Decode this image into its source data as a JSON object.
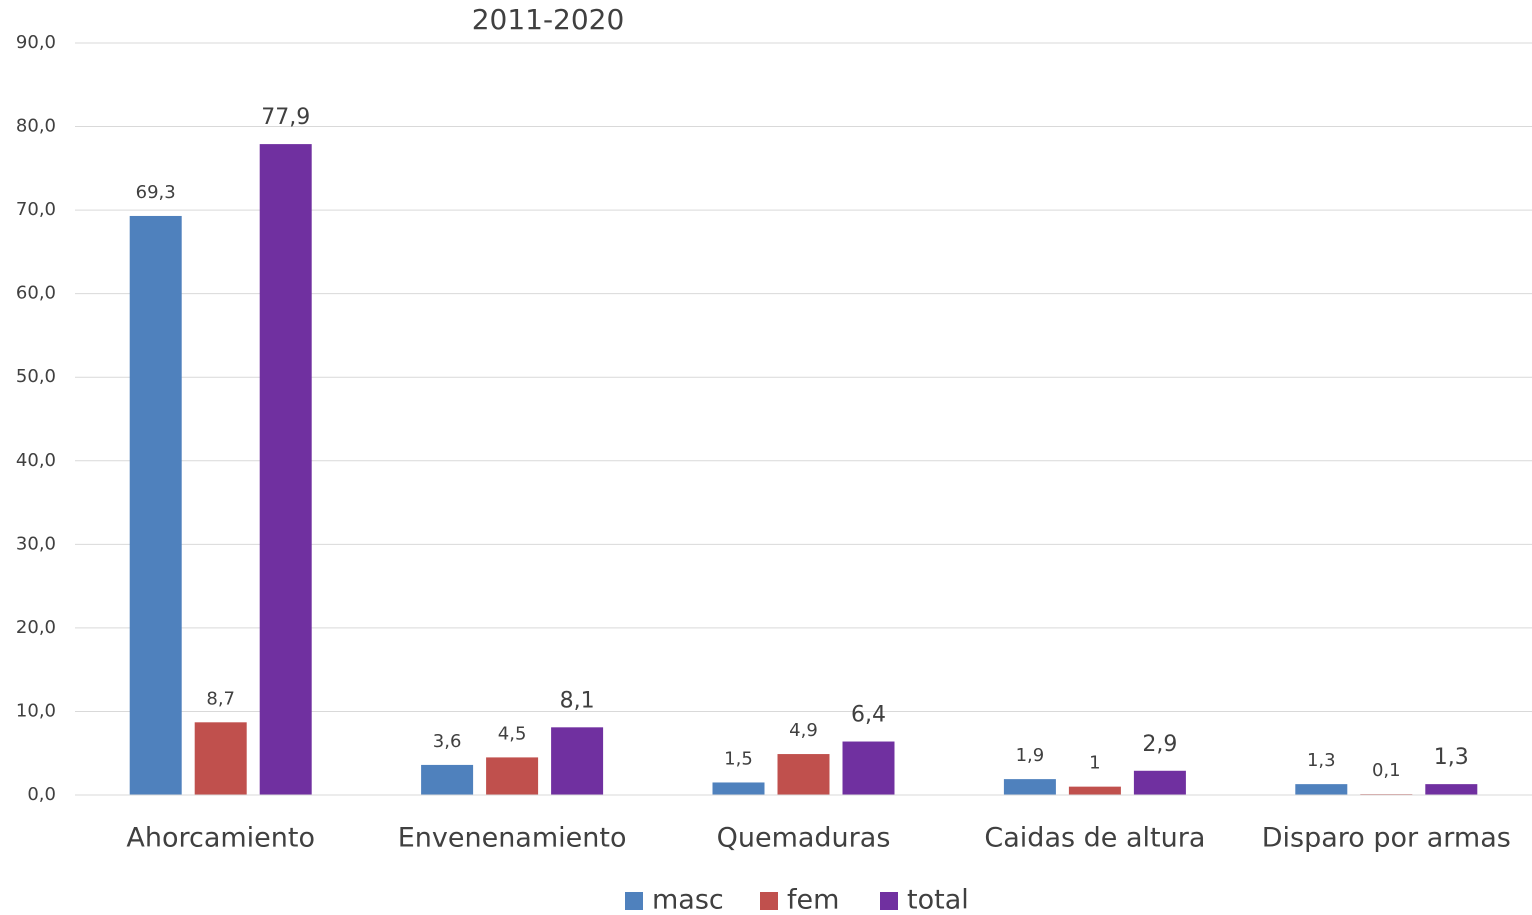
{
  "chart_data": {
    "type": "bar",
    "title": "2011-2020",
    "categories": [
      "Ahorcamiento",
      "Envenenamiento",
      "Quemaduras",
      "Caidas de altura",
      "Disparo por armas"
    ],
    "series": [
      {
        "name": "masc",
        "color": "#4f81bd",
        "values": [
          69.3,
          3.6,
          1.5,
          1.9,
          1.3
        ],
        "value_labels": [
          "69,3",
          "3,6",
          "1,5",
          "1,9",
          "1,3"
        ]
      },
      {
        "name": "fem",
        "color": "#c0504d",
        "values": [
          8.7,
          4.5,
          4.9,
          1,
          0.1
        ],
        "value_labels": [
          "8,7",
          "4,5",
          "4,9",
          "1",
          "0,1"
        ]
      },
      {
        "name": "total",
        "color": "#7030a0",
        "values": [
          77.9,
          8.1,
          6.4,
          2.9,
          1.3
        ],
        "value_labels": [
          "77,9",
          "8,1",
          "6,4",
          "2,9",
          "1,3"
        ]
      }
    ],
    "ylim": [
      0,
      90
    ],
    "yticks": [
      {
        "value": 0,
        "label": "0,0"
      },
      {
        "value": 10,
        "label": "10,0"
      },
      {
        "value": 20,
        "label": "20,0"
      },
      {
        "value": 30,
        "label": "30,0"
      },
      {
        "value": 40,
        "label": "40,0"
      },
      {
        "value": 50,
        "label": "50,0"
      },
      {
        "value": 60,
        "label": "60,0"
      },
      {
        "value": 70,
        "label": "70,0"
      },
      {
        "value": 80,
        "label": "80,0"
      },
      {
        "value": 90,
        "label": "90,0"
      }
    ],
    "grid": true,
    "legend": "bottom"
  }
}
